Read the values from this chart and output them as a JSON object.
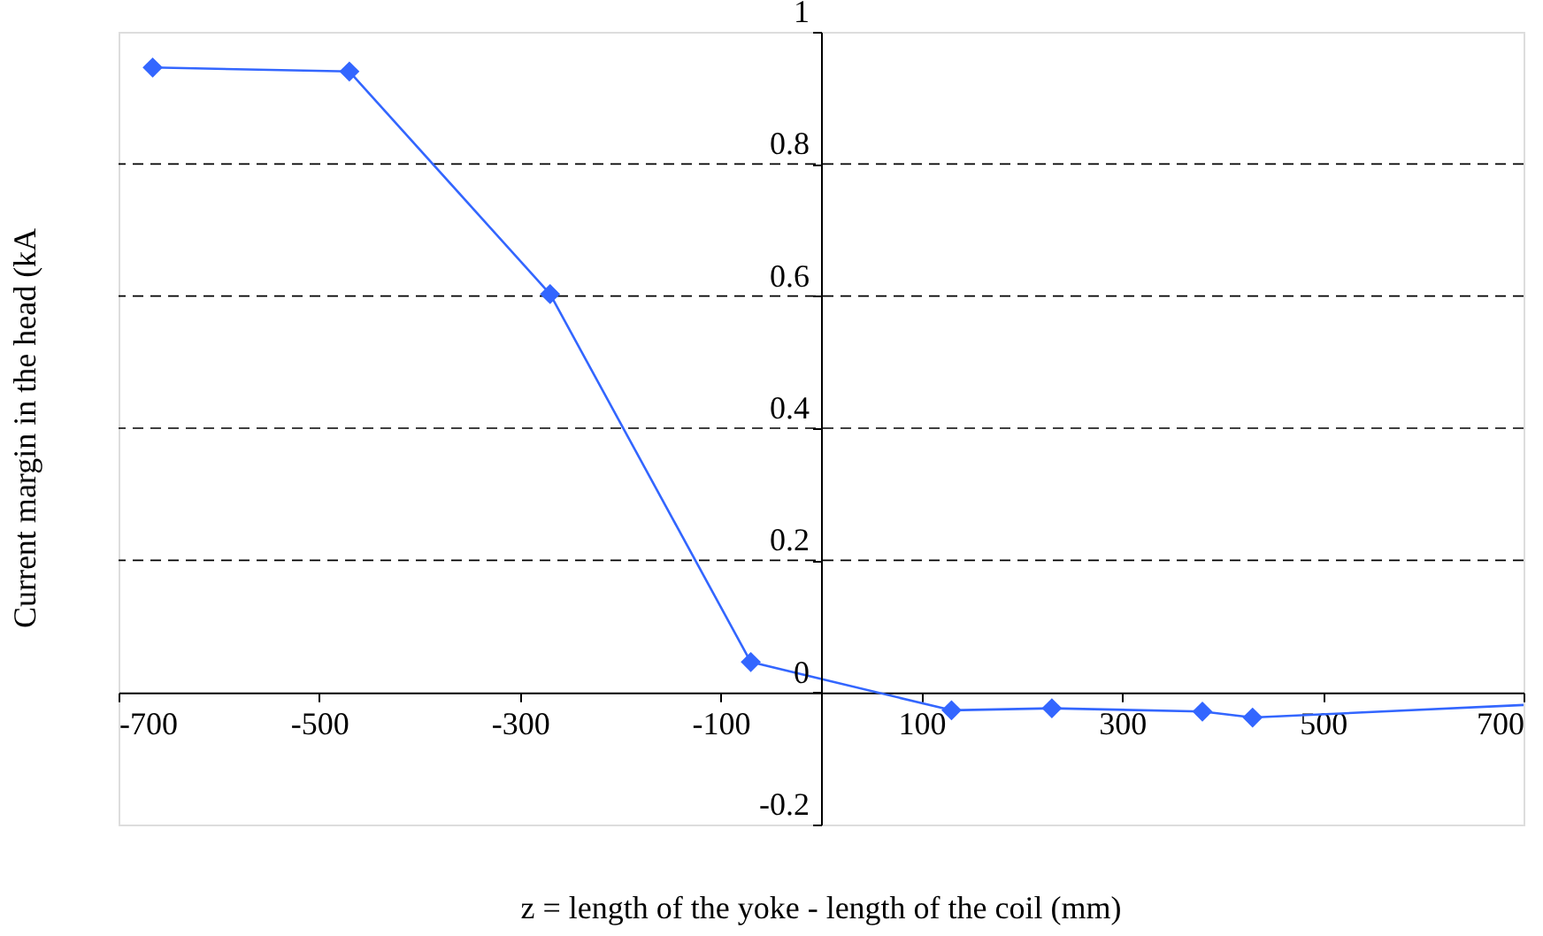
{
  "chart_data": {
    "type": "line",
    "xlabel": "z = length of the yoke - length of the coil (mm)",
    "ylabel": "Current margin in the head (kA",
    "xlim": [
      -700,
      700
    ],
    "xticks": [
      -700,
      -500,
      -300,
      -100,
      100,
      300,
      500,
      700
    ],
    "ylim": [
      -0.2,
      1
    ],
    "yticks": [
      -0.2,
      0,
      0.2,
      0.4,
      0.6,
      0.8,
      1
    ],
    "grid": "y",
    "marker": "diamond",
    "line_style": "solid",
    "series": [
      {
        "color": "#3366ff",
        "x": [
          -666,
          -470,
          -270,
          -70,
          130,
          230,
          380,
          430
        ],
        "values": [
          0.946,
          0.94,
          0.603,
          0.046,
          -0.027,
          -0.024,
          -0.029,
          -0.038
        ]
      },
      {
        "type": "line",
        "marker": "none",
        "color": "#3366ff",
        "x": [
          430,
          700
        ],
        "values": [
          -0.038,
          -0.019
        ]
      }
    ]
  }
}
